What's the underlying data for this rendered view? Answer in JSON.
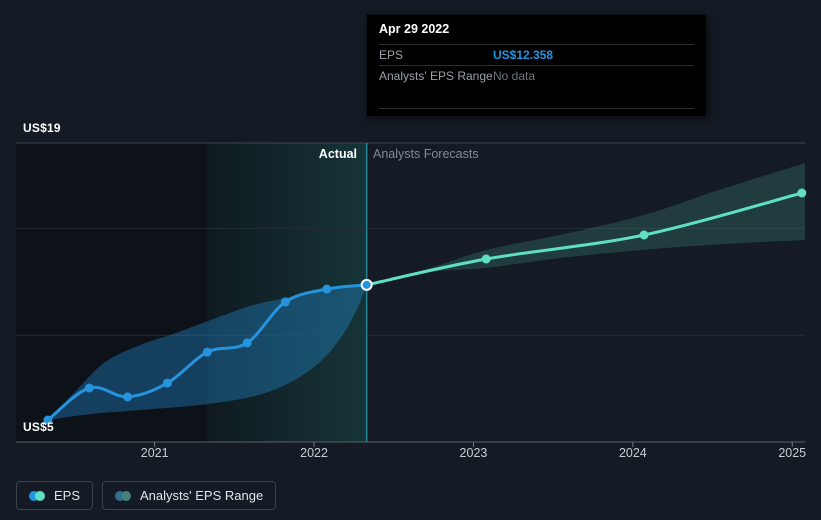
{
  "tooltip": {
    "title": "Apr 29 2022",
    "rows": [
      {
        "label": "EPS",
        "value": "US$12.358",
        "accent": true
      },
      {
        "label": "Analysts' EPS Range",
        "value": "No data",
        "accent": false
      }
    ]
  },
  "axis": {
    "y_top_label": "US$19",
    "y_bottom_label": "US$5",
    "x_ticks": [
      "2021",
      "2022",
      "2023",
      "2024",
      "2025"
    ]
  },
  "annotations": {
    "actual": "Actual",
    "forecast": "Analysts Forecasts"
  },
  "legend": [
    {
      "label": "EPS",
      "colors": [
        "#2394df",
        "#5fe0c5"
      ]
    },
    {
      "label": "Analysts' EPS Range",
      "colors": [
        "#2f6e91",
        "#44807a"
      ]
    }
  ],
  "colors": {
    "eps_line": "#2693df",
    "eps_band": "rgba(35,148,223,0.35)",
    "forecast_line": "#5fe0c5",
    "forecast_band": "rgba(95,224,197,0.17)",
    "divider": "#2b96a5",
    "highlight_start": "rgba(64,224,208,0.04)",
    "highlight_end": "rgba(64,224,208,0.17)",
    "gridline_top": "#3d464f",
    "gridline_mid": "#252c36",
    "axis_line": "#5a6169",
    "tick": "#757b82",
    "tooltip_value": "#2394df",
    "hover_dot_fill": "#2394df",
    "hover_dot_ring": "#ffffff"
  },
  "chart_data": {
    "type": "line",
    "title": "EPS actual vs analysts forecasts",
    "ylim": [
      5,
      19
    ],
    "xlim": [
      2020.13,
      2025.08
    ],
    "gridline_values": [
      19,
      15,
      10,
      5
    ],
    "x_tick_years": [
      2021,
      2022,
      2023,
      2024,
      2025
    ],
    "divider_x": 2022.33,
    "highlight_window": [
      2021.33,
      2022.33
    ],
    "hover_point": {
      "x": 2022.33,
      "y": 12.358,
      "date": "Apr 29 2022"
    },
    "series": [
      {
        "name": "EPS (actual)",
        "points": [
          [
            2020.33,
            6.03
          ],
          [
            2020.59,
            7.53
          ],
          [
            2020.83,
            7.11
          ],
          [
            2021.08,
            7.76
          ],
          [
            2021.33,
            9.21
          ],
          [
            2021.58,
            9.64
          ],
          [
            2021.82,
            11.56
          ],
          [
            2022.08,
            12.16
          ],
          [
            2022.33,
            12.358
          ]
        ]
      },
      {
        "name": "EPS (analysts forecast)",
        "points": [
          [
            2022.33,
            12.358
          ],
          [
            2023.08,
            13.57
          ],
          [
            2024.07,
            14.69
          ],
          [
            2025.06,
            16.66
          ]
        ]
      }
    ],
    "bands": [
      {
        "name": "actual-eps-range",
        "upper": [
          [
            2020.33,
            6.03
          ],
          [
            2020.51,
            7.43
          ],
          [
            2020.69,
            8.75
          ],
          [
            2020.91,
            9.54
          ],
          [
            2021.13,
            10.1
          ],
          [
            2021.35,
            10.71
          ],
          [
            2021.6,
            11.37
          ],
          [
            2021.85,
            11.79
          ],
          [
            2022.1,
            12.16
          ],
          [
            2022.33,
            12.358
          ]
        ],
        "lower": [
          [
            2020.33,
            6.03
          ],
          [
            2020.6,
            6.31
          ],
          [
            2020.91,
            6.5
          ],
          [
            2021.23,
            6.69
          ],
          [
            2021.51,
            6.97
          ],
          [
            2021.73,
            7.39
          ],
          [
            2021.91,
            8.04
          ],
          [
            2022.07,
            8.98
          ],
          [
            2022.2,
            10.24
          ],
          [
            2022.28,
            11.41
          ],
          [
            2022.33,
            12.358
          ]
        ]
      },
      {
        "name": "forecast-eps-range",
        "upper": [
          [
            2022.33,
            12.358
          ],
          [
            2022.73,
            13.15
          ],
          [
            2023.08,
            13.99
          ],
          [
            2023.54,
            14.69
          ],
          [
            2024.07,
            15.63
          ],
          [
            2024.54,
            16.8
          ],
          [
            2025.08,
            18.06
          ]
        ],
        "lower": [
          [
            2022.33,
            12.358
          ],
          [
            2022.73,
            12.96
          ],
          [
            2023.08,
            13.15
          ],
          [
            2023.54,
            13.61
          ],
          [
            2024.07,
            14.0
          ],
          [
            2024.54,
            14.25
          ],
          [
            2025.08,
            14.46
          ]
        ]
      }
    ]
  }
}
